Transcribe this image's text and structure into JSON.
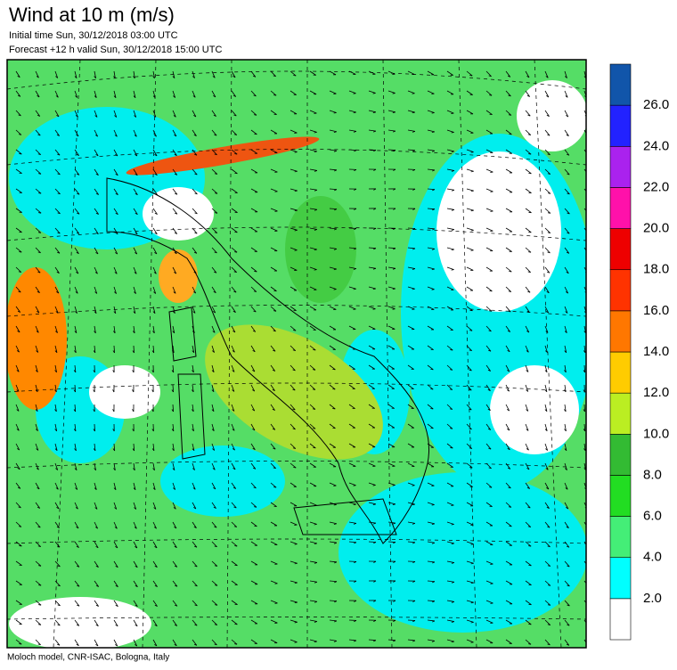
{
  "header": {
    "title": "Wind at 10 m (m/s)",
    "initial_time": "Initial time  Sun, 30/12/2018 03:00 UTC",
    "forecast": "Forecast +12 h valid  Sun, 30/12/2018 15:00 UTC"
  },
  "footer": "Moloch model, CNR-ISAC, Bologna, Italy",
  "colorbar": {
    "colors": [
      "#ffffff",
      "#00ffff",
      "#44ee77",
      "#22dd22",
      "#33bb33",
      "#bbee22",
      "#ffcc00",
      "#ff7700",
      "#ff3300",
      "#ee0000",
      "#ff11aa",
      "#aa22ee",
      "#2222ff",
      "#1155aa"
    ],
    "labels": [
      "2.0",
      "4.0",
      "6.0",
      "8.0",
      "10.0",
      "12.0",
      "14.0",
      "16.0",
      "18.0",
      "20.0",
      "22.0",
      "24.0",
      "26.0"
    ]
  }
}
